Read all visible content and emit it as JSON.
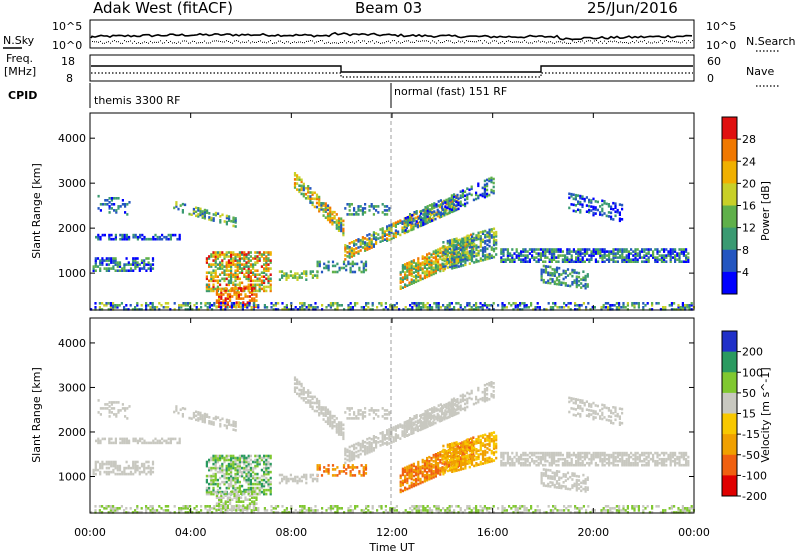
{
  "header": {
    "station": "Adak West (fitACF)",
    "beam": "Beam 03",
    "date": "25/Jun/2016"
  },
  "top_panels": {
    "nsky_label": "N.Sky",
    "nsky_ticks": [
      "10^5",
      "10^0"
    ],
    "nsearch_label": "N.Search",
    "nsearch_ticks": [
      "10^5",
      "10^0"
    ],
    "freq_label_1": "Freq.",
    "freq_label_2": "[MHz]",
    "freq_ticks": [
      "18",
      "8"
    ],
    "nave_label": "Nave",
    "nave_ticks": [
      "60",
      "0"
    ],
    "cpid_label": "CPID",
    "cpid_segments": [
      {
        "text": "themis 3300 RF",
        "start_hour": 0
      },
      {
        "text": "normal (fast) 151 RF",
        "start_hour": 12
      }
    ]
  },
  "chart_data": [
    {
      "type": "heatmap",
      "name": "power",
      "ylabel": "Slant Range [km]",
      "ylim": [
        180,
        4560
      ],
      "yticks": [
        1000,
        2000,
        3000,
        4000
      ],
      "xlim": [
        0,
        24
      ],
      "colorbar_label": "Power [dB]",
      "colorbar_ticks": [
        "28",
        "24",
        "20",
        "16",
        "12",
        "8",
        "4"
      ],
      "colorbar_range": [
        0,
        32
      ]
    },
    {
      "type": "heatmap",
      "name": "velocity",
      "ylabel": "Slant Range [km]",
      "ylim": [
        180,
        4560
      ],
      "yticks": [
        1000,
        2000,
        3000,
        4000
      ],
      "xlim": [
        0,
        24
      ],
      "colorbar_label": "Velocity [m s^-1]",
      "colorbar_ticks": [
        "200",
        "100",
        "50",
        "15",
        "-15",
        "-50",
        "-100",
        "-200"
      ]
    }
  ],
  "xaxis": {
    "label": "Time UT",
    "ticks": [
      "00:00",
      "04:00",
      "08:00",
      "12:00",
      "16:00",
      "20:00",
      "00:00"
    ]
  },
  "colors": {
    "power_scale": [
      "#0000ff",
      "#2456c0",
      "#3a9a72",
      "#5fb04a",
      "#c8d028",
      "#f0b000",
      "#f07800",
      "#e01010"
    ],
    "velocity_scale": [
      "#e00000",
      "#f06010",
      "#f0a000",
      "#f8c800",
      "#c8c8c0",
      "#80c830",
      "#2a9a60",
      "#2030c8"
    ]
  }
}
